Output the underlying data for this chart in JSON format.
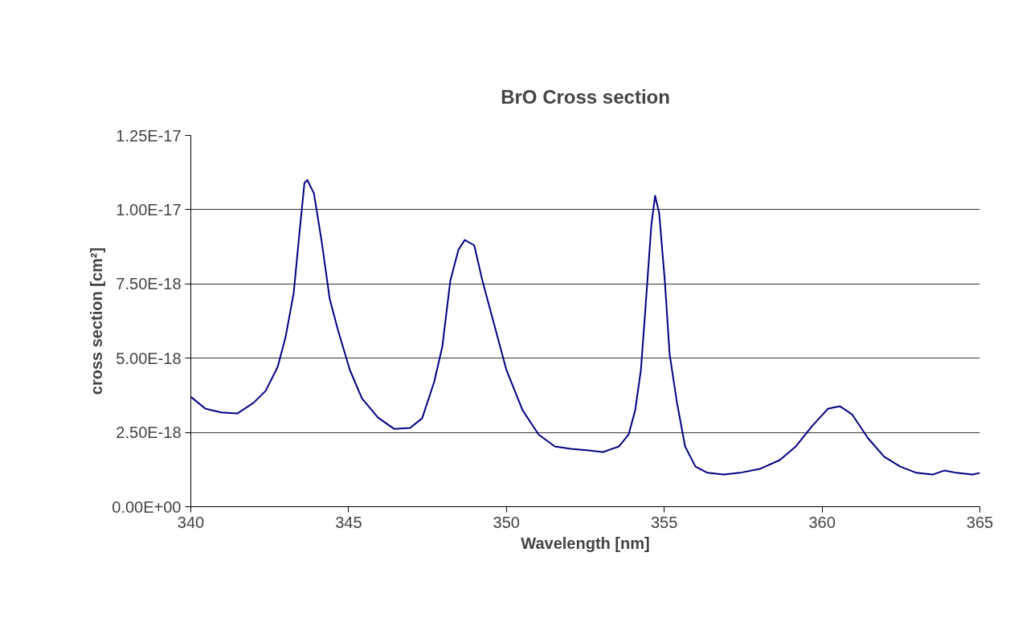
{
  "chart_data": {
    "type": "line",
    "title": "BrO Cross section",
    "xlabel": "Wavelength [nm]",
    "ylabel": "cross section [cm²]",
    "xlim": [
      340,
      365
    ],
    "xticks": [
      340,
      345,
      350,
      355,
      360,
      365
    ],
    "ylim": [
      0,
      1.25e-17
    ],
    "yticks": [
      {
        "value": 0,
        "label": "0.00E+00"
      },
      {
        "value": 2.5e-18,
        "label": "2.50E-18"
      },
      {
        "value": 5e-18,
        "label": "5.00E-18"
      },
      {
        "value": 7.5e-18,
        "label": "7.50E-18"
      },
      {
        "value": 1e-17,
        "label": "1.00E-17"
      },
      {
        "value": 1.25e-17,
        "label": "1.25E-17"
      }
    ],
    "grid": "y",
    "marker": "none",
    "line_style": "solid",
    "series": [
      {
        "color": "#000080",
        "x": [
          340,
          340.46,
          340.97,
          341.48,
          341.99,
          342.37,
          342.75,
          343.0,
          343.26,
          343.44,
          343.6,
          343.69,
          343.9,
          344.15,
          344.4,
          344.66,
          345.04,
          345.42,
          345.93,
          346.44,
          346.95,
          347.33,
          347.71,
          347.97,
          348.22,
          348.48,
          348.68,
          348.98,
          349.24,
          349.62,
          350.0,
          350.51,
          351.02,
          351.53,
          352.04,
          352.55,
          353.06,
          353.57,
          353.87,
          354.08,
          354.26,
          354.41,
          354.59,
          354.71,
          354.84,
          355.02,
          355.17,
          355.4,
          355.66,
          355.99,
          356.37,
          356.88,
          357.39,
          358.02,
          358.66,
          359.17,
          359.68,
          360.19,
          360.57,
          360.95,
          361.46,
          361.97,
          362.48,
          362.99,
          363.5,
          363.88,
          364.26,
          364.77,
          365
        ],
        "values": [
          3.7e-18,
          3.3e-18,
          3.17e-18,
          3.14e-18,
          3.5e-18,
          3.9e-18,
          4.7e-18,
          5.7e-18,
          7.2e-18,
          9.2e-18,
          1.09e-17,
          1.1e-17,
          1.055e-17,
          8.9e-18,
          7e-18,
          5.95e-18,
          4.6e-18,
          3.65e-18,
          3e-18,
          2.62e-18,
          2.65e-18,
          2.98e-18,
          4.2e-18,
          5.4e-18,
          7.6e-18,
          8.65e-18,
          8.98e-18,
          8.8e-18,
          7.6e-18,
          6.1e-18,
          4.6e-18,
          3.25e-18,
          2.43e-18,
          2.03e-18,
          1.95e-18,
          1.9e-18,
          1.84e-18,
          2.03e-18,
          2.43e-18,
          3.25e-18,
          4.6e-18,
          6.76e-18,
          9.47e-18,
          1.047e-17,
          9.88e-18,
          7.58e-18,
          5.14e-18,
          3.52e-18,
          2.03e-18,
          1.35e-18,
          1.14e-18,
          1.08e-18,
          1.14e-18,
          1.27e-18,
          1.57e-18,
          2.03e-18,
          2.71e-18,
          3.3e-18,
          3.38e-18,
          3.11e-18,
          2.3e-18,
          1.68e-18,
          1.35e-18,
          1.14e-18,
          1.08e-18,
          1.22e-18,
          1.14e-18,
          1.08e-18,
          1.14e-18
        ]
      }
    ]
  }
}
